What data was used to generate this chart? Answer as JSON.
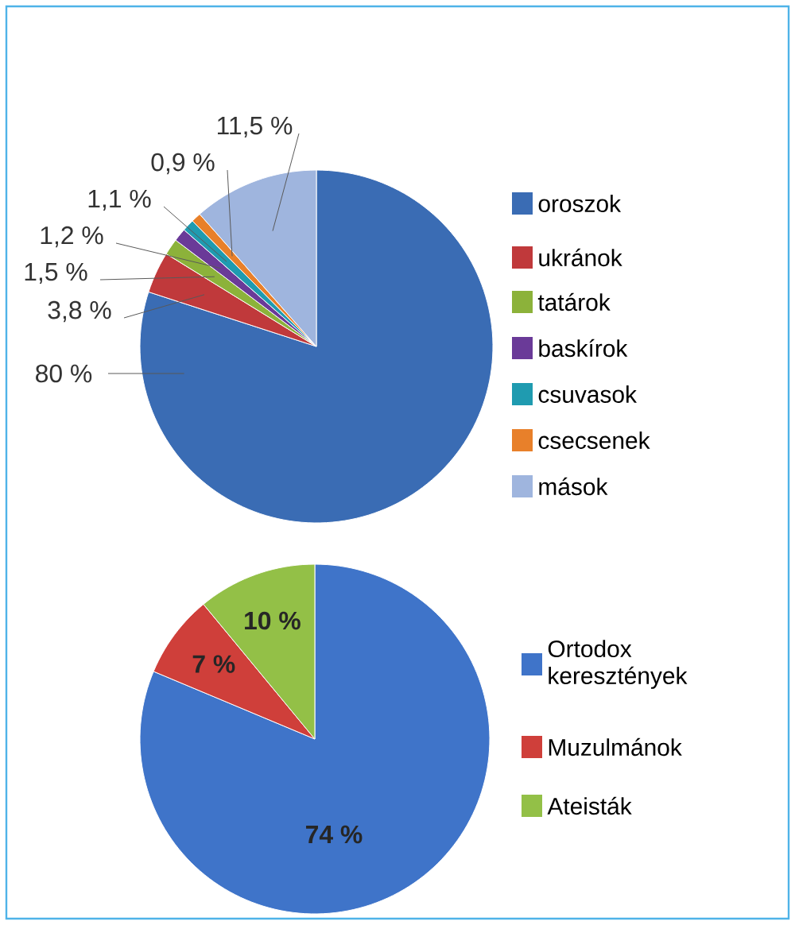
{
  "chart_data": [
    {
      "type": "pie",
      "categories": [
        "oroszok",
        "ukránok",
        "tatárok",
        "baskírok",
        "csuvasok",
        "csecsenek",
        "mások"
      ],
      "values": [
        80,
        3.8,
        1.5,
        1.2,
        1.1,
        0.9,
        11.5
      ],
      "colors": [
        "#3a6cb4",
        "#c0393b",
        "#8cb23a",
        "#6a3a98",
        "#1f9bb0",
        "#e8802a",
        "#9fb5de"
      ],
      "value_labels": [
        "80 %",
        "3,8 %",
        "1,5 %",
        "1,2 %",
        "1,1 %",
        "0,9 %",
        "11,5 %"
      ],
      "legend": "right"
    },
    {
      "type": "pie",
      "categories": [
        "Ortodox keresztények",
        "Muzulmánok",
        "Ateisták"
      ],
      "values": [
        74,
        7,
        10
      ],
      "colors": [
        "#3f74c9",
        "#cf3f3a",
        "#93c047"
      ],
      "value_labels": [
        "74 %",
        "7 %",
        "10 %"
      ],
      "legend": "right"
    }
  ]
}
